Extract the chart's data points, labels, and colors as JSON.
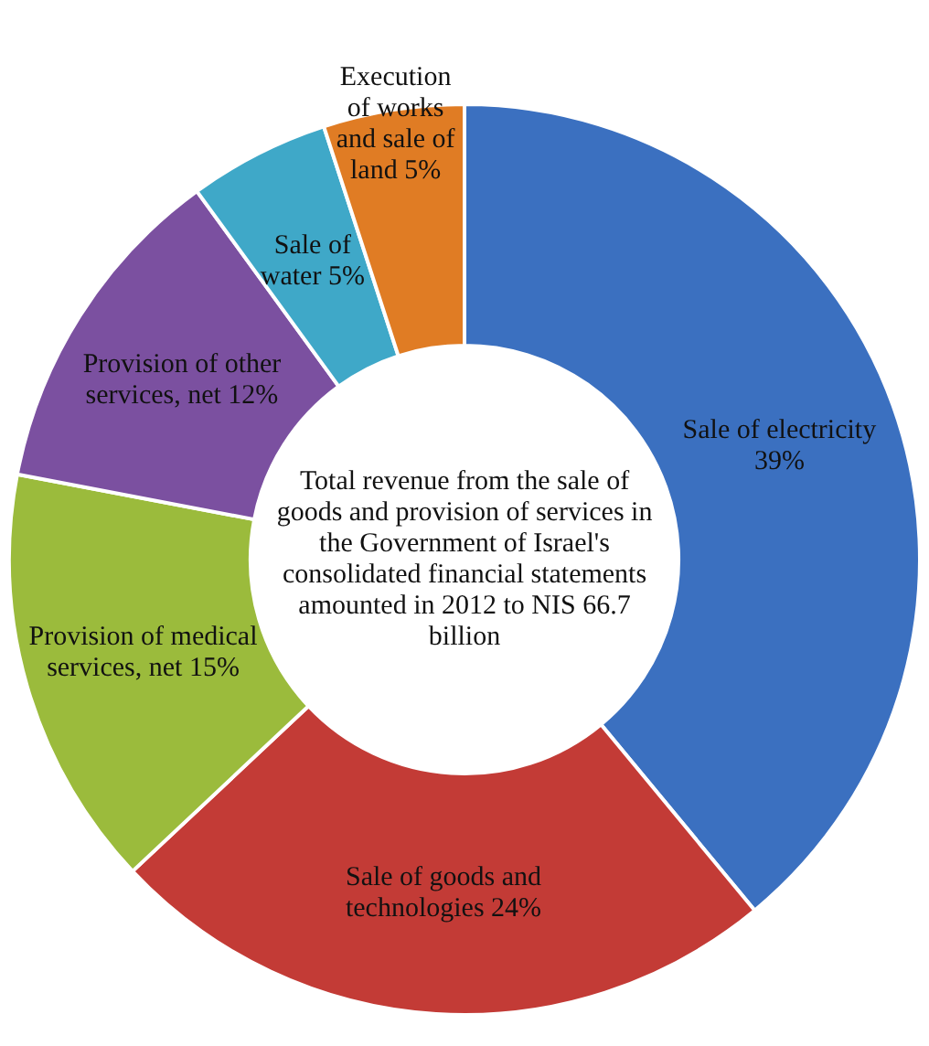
{
  "chart_data": {
    "type": "donut",
    "categories": [
      "Sale of electricity",
      "Sale of goods and technologies",
      "Provision of medical services, net",
      "Provision of other services, net",
      "Sale of water",
      "Execution of works and sale of land"
    ],
    "values": [
      39,
      24,
      15,
      12,
      5,
      5
    ],
    "value_labels": [
      "39%",
      "24%",
      "15%",
      "12%",
      "5%",
      "5%"
    ],
    "colors": [
      "#3b70c0",
      "#c33b36",
      "#9bbb3c",
      "#7b50a0",
      "#3fa8c8",
      "#e07c24"
    ],
    "annotations": [
      "Total revenue from the sale of goods and provision of services in the Government of Israel's consolidated financial statements amounted in 2012 to NIS 66.7 billion"
    ],
    "legend": false
  }
}
